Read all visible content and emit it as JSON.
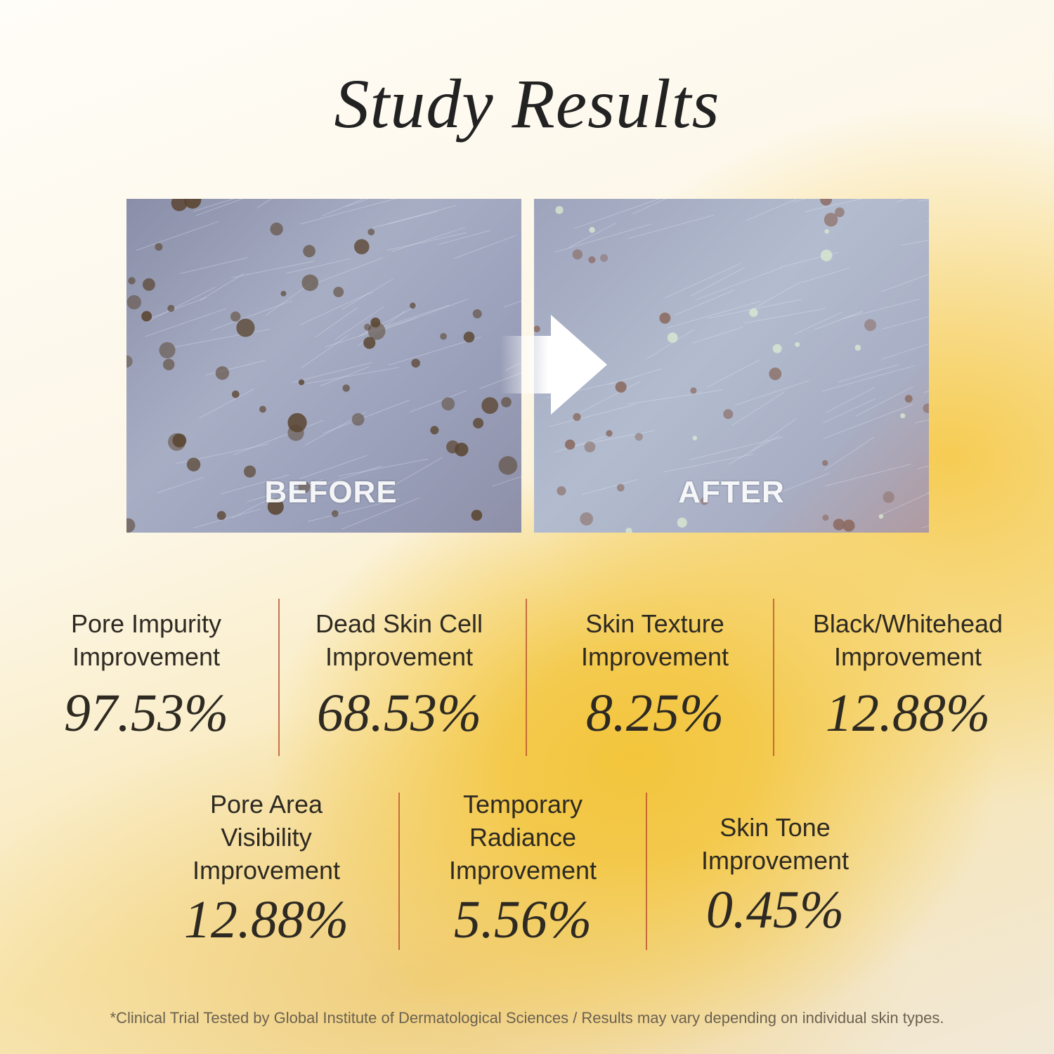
{
  "title": "Study Results",
  "photos": {
    "before_label": "BEFORE",
    "after_label": "AFTER",
    "arrow_icon": "arrow-right-icon"
  },
  "stats_row1": [
    {
      "label": "Pore Impurity Improvement",
      "value": "97.53%"
    },
    {
      "label": "Dead Skin Cell Improvement",
      "value": "68.53%"
    },
    {
      "label": "Skin Texture Improvement",
      "value": "8.25%"
    },
    {
      "label": "Black/Whitehead Improvement",
      "value": "12.88%"
    }
  ],
  "stats_row2": [
    {
      "label": "Pore Area Visibility Improvement",
      "value": "12.88%"
    },
    {
      "label": "Temporary Radiance Improvement",
      "value": "5.56%"
    },
    {
      "label": "Skin Tone Improvement",
      "value": "0.45%"
    }
  ],
  "footnote": "*Clinical Trial Tested by Global Institute of Dermatological Sciences / Results may vary depending on individual skin types.",
  "colors": {
    "accent_divider": "#b54a2a",
    "gold": "#f3c53c"
  }
}
